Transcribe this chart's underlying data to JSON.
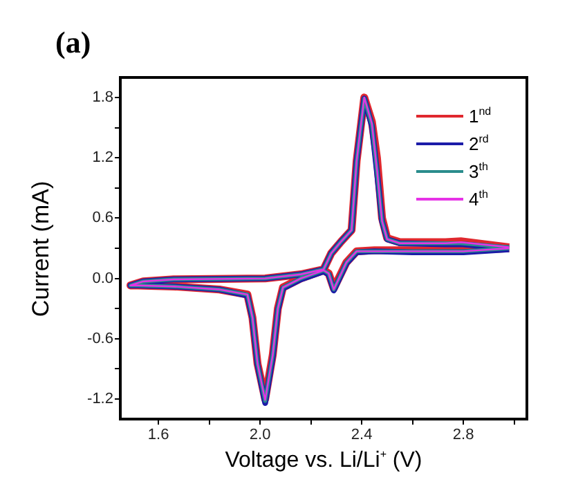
{
  "chart_data": {
    "type": "line",
    "title": "(a)",
    "xlabel": "Voltage vs. Li/Li$^{+}$ (V)",
    "ylabel": "Current (mA)",
    "xlim": [
      1.45,
      3.05
    ],
    "ylim": [
      -1.4,
      2.0
    ],
    "xticks": [
      1.6,
      {
        "value": 1.8,
        "label": null
      },
      {
        "value": 2.0,
        "label": "2.0"
      },
      {
        "value": 2.2,
        "label": null
      },
      2.4,
      {
        "value": 2.6,
        "label": null
      },
      2.8,
      {
        "value": 3.0,
        "label": null
      }
    ],
    "yticks": [
      {
        "value": -1.2,
        "label": "-1.2"
      },
      {
        "value": -0.9,
        "label": null
      },
      -0.6,
      {
        "value": -0.3,
        "label": null
      },
      {
        "value": 0,
        "label": "0.0"
      },
      {
        "value": 0.3,
        "label": null
      },
      0.6,
      {
        "value": 0.9,
        "label": null
      },
      1.2,
      {
        "value": 1.5,
        "label": null
      },
      1.8
    ],
    "grid": false,
    "legend": "top right",
    "marker": "none",
    "line_style": "solid",
    "series": [
      {
        "name": "1$^{nd}$",
        "color": "#e0282e",
        "x": [
          2.98,
          2.8,
          2.6,
          2.45,
          2.38,
          2.34,
          2.29,
          2.27,
          2.25,
          2.16,
          2.09,
          2.07,
          2.05,
          2.02,
          1.99,
          1.97,
          1.95,
          1.84,
          1.66,
          1.52,
          1.49,
          1.54,
          1.66,
          2.02,
          2.16,
          2.25,
          2.28,
          2.32,
          2.36,
          2.38,
          2.41,
          2.44,
          2.46,
          2.48,
          2.5,
          2.55,
          2.73,
          2.79,
          2.98
        ],
        "values": [
          0.3,
          0.28,
          0.28,
          0.28,
          0.27,
          0.16,
          -0.1,
          0.05,
          0.08,
          0.0,
          -0.09,
          -0.3,
          -0.76,
          -1.2,
          -0.85,
          -0.39,
          -0.16,
          -0.11,
          -0.08,
          -0.07,
          -0.07,
          -0.03,
          -0.01,
          0.0,
          0.04,
          0.09,
          0.25,
          0.37,
          0.48,
          1.17,
          1.8,
          1.56,
          1.2,
          0.6,
          0.4,
          0.36,
          0.36,
          0.37,
          0.31
        ]
      },
      {
        "name": "2$^{rd}$",
        "color": "#1c1ca8",
        "x": [
          2.98,
          2.8,
          2.6,
          2.45,
          2.38,
          2.34,
          2.29,
          2.27,
          2.25,
          2.16,
          2.09,
          2.07,
          2.05,
          2.02,
          1.99,
          1.97,
          1.95,
          1.84,
          1.66,
          1.52,
          1.49,
          1.54,
          1.66,
          2.02,
          2.16,
          2.25,
          2.28,
          2.32,
          2.36,
          2.38,
          2.41,
          2.44,
          2.46,
          2.48,
          2.5,
          2.55,
          2.73,
          2.79,
          2.98
        ],
        "values": [
          0.29,
          0.26,
          0.26,
          0.27,
          0.26,
          0.15,
          -0.12,
          0.04,
          0.07,
          -0.01,
          -0.1,
          -0.31,
          -0.78,
          -1.24,
          -0.86,
          -0.4,
          -0.17,
          -0.11,
          -0.08,
          -0.07,
          -0.07,
          -0.03,
          -0.01,
          0.0,
          0.04,
          0.09,
          0.25,
          0.37,
          0.48,
          1.17,
          1.79,
          1.52,
          1.06,
          0.57,
          0.39,
          0.35,
          0.34,
          0.34,
          0.3
        ]
      },
      {
        "name": "3$^{th}$",
        "color": "#2a8c8c",
        "x": [
          2.98,
          2.8,
          2.6,
          2.45,
          2.38,
          2.34,
          2.29,
          2.27,
          2.25,
          2.16,
          2.09,
          2.07,
          2.05,
          2.02,
          1.99,
          1.97,
          1.95,
          1.84,
          1.66,
          1.52,
          1.49,
          1.54,
          1.66,
          2.02,
          2.16,
          2.25,
          2.28,
          2.32,
          2.36,
          2.38,
          2.41,
          2.44,
          2.46,
          2.48,
          2.5,
          2.55,
          2.73,
          2.79,
          2.98
        ],
        "values": [
          0.3,
          0.27,
          0.27,
          0.27,
          0.27,
          0.16,
          -0.11,
          0.05,
          0.08,
          0.0,
          -0.09,
          -0.3,
          -0.76,
          -1.22,
          -0.85,
          -0.39,
          -0.16,
          -0.11,
          -0.08,
          -0.07,
          -0.07,
          -0.03,
          -0.01,
          0.0,
          0.04,
          0.09,
          0.25,
          0.37,
          0.48,
          1.17,
          1.79,
          1.53,
          1.07,
          0.57,
          0.39,
          0.35,
          0.35,
          0.35,
          0.31
        ]
      },
      {
        "name": "4$^{th}$",
        "color": "#e632e6",
        "x": [
          2.98,
          2.8,
          2.6,
          2.45,
          2.38,
          2.34,
          2.29,
          2.27,
          2.25,
          2.16,
          2.09,
          2.07,
          2.05,
          2.02,
          1.99,
          1.97,
          1.95,
          1.84,
          1.66,
          1.52,
          1.49,
          1.54,
          1.66,
          2.02,
          2.16,
          2.25,
          2.28,
          2.32,
          2.36,
          2.38,
          2.41,
          2.44,
          2.46,
          2.48,
          2.5,
          2.55,
          2.73,
          2.79,
          2.98
        ],
        "values": [
          0.3,
          0.27,
          0.27,
          0.27,
          0.27,
          0.16,
          -0.11,
          0.05,
          0.08,
          0.0,
          -0.09,
          -0.3,
          -0.76,
          -1.21,
          -0.85,
          -0.39,
          -0.16,
          -0.11,
          -0.08,
          -0.07,
          -0.07,
          -0.03,
          -0.01,
          0.0,
          0.04,
          0.09,
          0.25,
          0.37,
          0.48,
          1.17,
          1.8,
          1.54,
          1.08,
          0.57,
          0.39,
          0.35,
          0.35,
          0.36,
          0.31
        ]
      }
    ]
  }
}
